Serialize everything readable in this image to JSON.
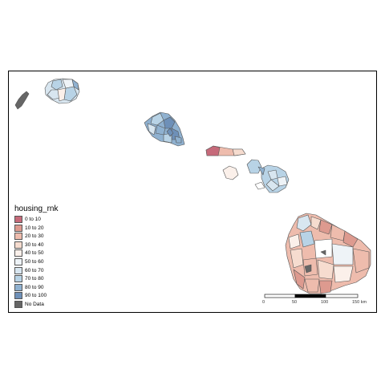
{
  "legend": {
    "title": "housing_rnk",
    "items": [
      {
        "label": "0 to 10",
        "color": "#c66a7a"
      },
      {
        "label": "10 to 20",
        "color": "#dd9a8f"
      },
      {
        "label": "20 to 30",
        "color": "#eebcad"
      },
      {
        "label": "30 to 40",
        "color": "#f6dccf"
      },
      {
        "label": "40 to 50",
        "color": "#fbf0ea"
      },
      {
        "label": "50 to 60",
        "color": "#eef3f7"
      },
      {
        "label": "60 to 70",
        "color": "#d8e6f0"
      },
      {
        "label": "70 to 80",
        "color": "#b8d3e6"
      },
      {
        "label": "80 to 90",
        "color": "#8fb1d0"
      },
      {
        "label": "90 to 100",
        "color": "#6e90b8"
      },
      {
        "label": "No Data",
        "color": "#666666"
      }
    ]
  },
  "scale_bar": {
    "labels": [
      "0",
      "50",
      "100",
      "150 km"
    ]
  },
  "colors": {
    "border": "#555555",
    "frame": "#000000"
  }
}
